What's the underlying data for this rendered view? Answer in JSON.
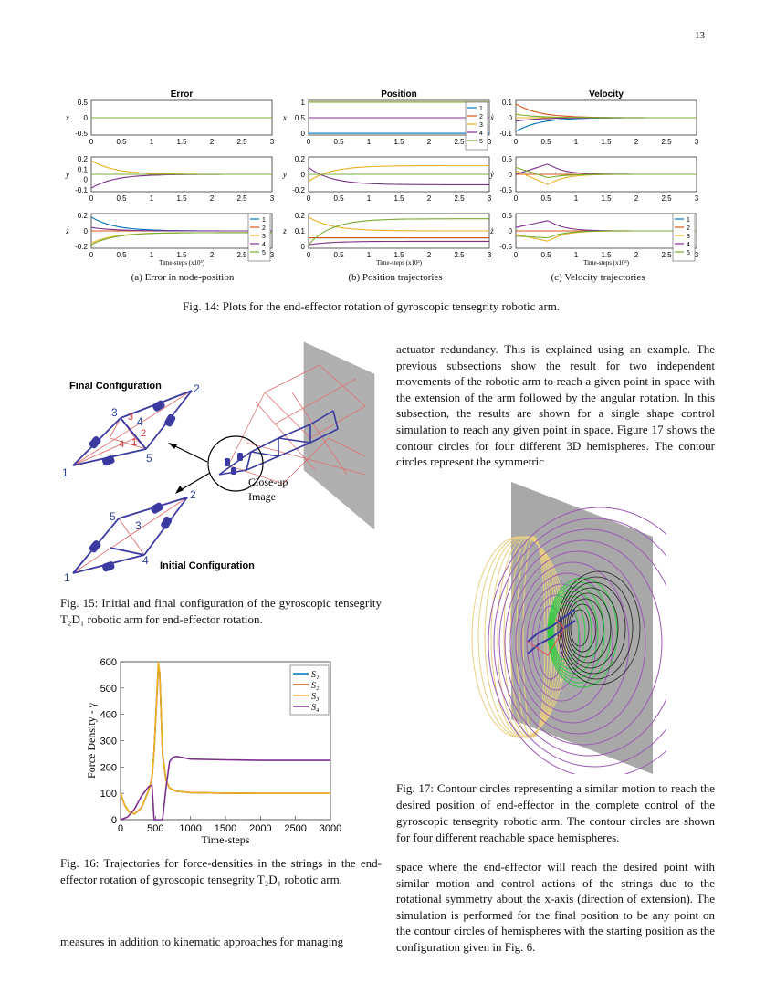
{
  "page_number": "13",
  "fig14": {
    "caption": "Fig. 14: Plots for the end-effector rotation of gyroscopic tensegrity robotic arm.",
    "subcaptions": [
      "(a) Error in node-position",
      "(b) Position trajectories",
      "(c) Velocity trajectories"
    ],
    "panel_titles": [
      "Error",
      "Position",
      "Velocity"
    ],
    "xlabel": "Time-steps (x10³)",
    "xticks": [
      "0",
      "0.5",
      "1",
      "1.5",
      "2",
      "2.5",
      "3"
    ],
    "legend_entries": [
      "1",
      "2",
      "3",
      "4",
      "5"
    ],
    "ylabels": [
      "x",
      "y",
      "z",
      "x",
      "y",
      "z",
      "ẋ",
      "ẏ",
      "ż"
    ],
    "yticks": [
      [
        "0.5",
        "0",
        "-0.5"
      ],
      [
        "0.2",
        "0.1",
        "0",
        "-0.1"
      ],
      [
        "0.2",
        "0",
        "-0.2"
      ],
      [
        "1",
        "0.5",
        "0"
      ],
      [
        "0.2",
        "0",
        "-0.2"
      ],
      [
        "0.2",
        "0.1",
        "0"
      ],
      [
        "0.1",
        "0",
        "-0.1"
      ],
      [
        "0.5",
        "0",
        "-0.5"
      ],
      [
        "0.5",
        "0",
        "-0.5"
      ]
    ]
  },
  "fig15": {
    "caption": "Fig. 15: Initial and final configuration of the gyroscopic tensegrity T₂D₁ robotic arm for end-effector rotation.",
    "final_label": "Final Configuration",
    "initial_label": "Initial Configuration",
    "closeup_label": "Close-up Image",
    "node_labels_final": [
      "1",
      "2",
      "3",
      "4",
      "5"
    ],
    "red_labels_final": [
      "3",
      "4",
      "2",
      "1"
    ],
    "node_labels_initial": [
      "1",
      "2",
      "3",
      "4",
      "5"
    ]
  },
  "fig16": {
    "caption": "Fig. 16: Trajectories for force-densities in the strings in the end-effector rotation of gyroscopic tensegrity T₂D₁ robotic arm."
  },
  "fig17": {
    "caption": "Fig. 17: Contour circles representing a similar motion to reach the desired position of end-effector in the complete control of the gyroscopic tensegrity robotic arm. The contour circles are shown for four different reachable space hemispheres."
  },
  "text": {
    "right_para1": "actuator redundancy. This is explained using an example. The previous subsections show the result for two independent movements of the robotic arm to reach a given point in space with the extension of the arm followed by the angular rotation. In this subsection, the results are shown for a single shape control simulation to reach any given point in space. Figure 17 shows the contour circles for four different 3D hemispheres. The contour circles represent the symmetric",
    "right_para2": "space where the end-effector will reach the desired point with similar motion and control actions of the strings due to the rotational symmetry about the x-axis (direction of extension). The simulation is performed for the final position to be any point on the contour circles of hemispheres with the starting position as the configuration given in Fig. 6.",
    "left_bottom": "measures in addition to kinematic approaches for managing"
  },
  "chart_data": {
    "type": "line",
    "title": "",
    "xlabel": "Time-steps",
    "ylabel": "Force Density - γ",
    "xlim": [
      0,
      3000
    ],
    "ylim": [
      0,
      600
    ],
    "xticks": [
      0,
      500,
      1000,
      1500,
      2000,
      2500,
      3000
    ],
    "yticks": [
      0,
      100,
      200,
      300,
      400,
      500,
      600
    ],
    "legend_placement": "top-right",
    "colors": {
      "S1": "#0072BD",
      "S2": "#D95319",
      "S3": "#EDB120",
      "S4": "#7E2F8E"
    },
    "series": [
      {
        "name": "S₁",
        "x": [
          0,
          60,
          120,
          200,
          300,
          400,
          450,
          480,
          510,
          540,
          560,
          580,
          600,
          650,
          700,
          800,
          1000,
          1500,
          2000,
          2500,
          3000
        ],
        "values": [
          100,
          55,
          30,
          22,
          45,
          110,
          160,
          260,
          420,
          580,
          560,
          400,
          250,
          150,
          120,
          108,
          103,
          101,
          100,
          100,
          100
        ]
      },
      {
        "name": "S₂",
        "x": [
          0,
          60,
          120,
          200,
          300,
          400,
          450,
          480,
          510,
          540,
          560,
          580,
          600,
          650,
          700,
          800,
          1000,
          1500,
          2000,
          2500,
          3000
        ],
        "values": [
          100,
          55,
          30,
          22,
          45,
          110,
          160,
          260,
          420,
          580,
          560,
          400,
          250,
          150,
          120,
          108,
          103,
          101,
          100,
          100,
          100
        ]
      },
      {
        "name": "S₃",
        "x": [
          0,
          60,
          120,
          200,
          300,
          400,
          450,
          480,
          510,
          540,
          560,
          580,
          600,
          650,
          700,
          800,
          1000,
          1500,
          2000,
          2500,
          3000
        ],
        "values": [
          100,
          55,
          30,
          22,
          45,
          110,
          160,
          260,
          420,
          600,
          560,
          400,
          250,
          150,
          120,
          108,
          103,
          101,
          100,
          100,
          100
        ]
      },
      {
        "name": "S₄",
        "x": [
          0,
          100,
          200,
          300,
          400,
          450,
          480,
          500,
          520,
          550,
          600,
          650,
          700,
          750,
          800,
          900,
          1000,
          1500,
          2000,
          2500,
          3000
        ],
        "values": [
          0,
          10,
          40,
          90,
          125,
          130,
          0,
          0,
          0,
          0,
          0,
          120,
          220,
          237,
          240,
          235,
          230,
          227,
          225,
          225,
          225
        ]
      }
    ]
  }
}
